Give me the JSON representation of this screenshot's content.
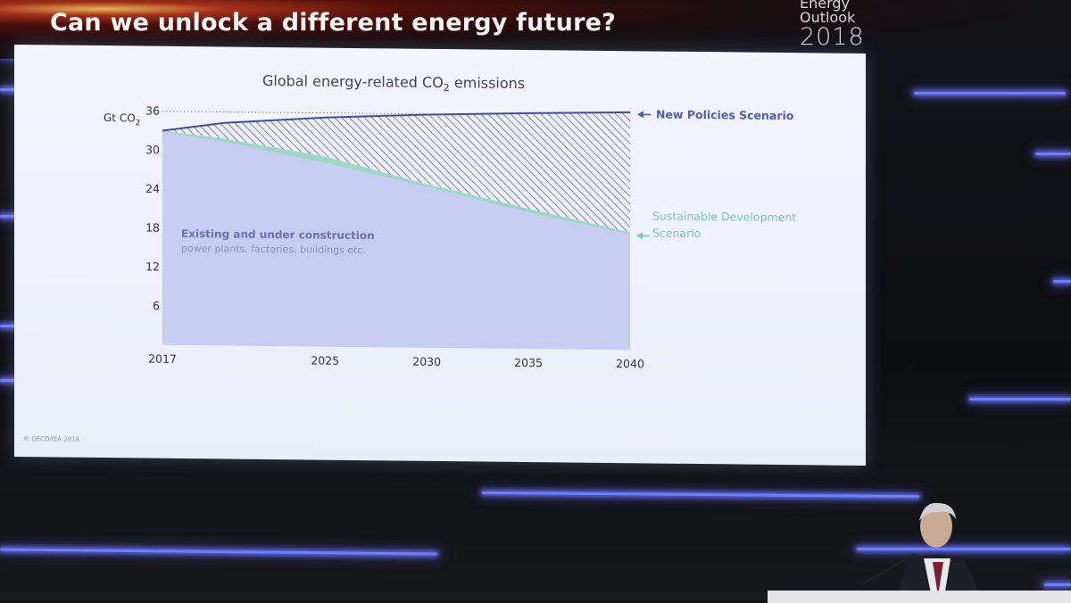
{
  "slide": {
    "title": "Can we unlock a different energy future?",
    "logo": {
      "line1": "Energy",
      "line2": "Outlook",
      "line3": "2018"
    },
    "credit": "© OECD/IEA 2018"
  },
  "chart_data": {
    "type": "area",
    "title": "Global energy-related CO",
    "title_sub": "2",
    "title_end": " emissions",
    "ylabel": "Gt CO",
    "ylabel_sub": "2",
    "ylim": [
      0,
      36
    ],
    "yticks": [
      6,
      12,
      18,
      24,
      30,
      36
    ],
    "xlim": [
      2017,
      2040
    ],
    "xticks": [
      2017,
      2025,
      2030,
      2035,
      2040
    ],
    "grid": "dotted",
    "series": [
      {
        "name": "New Policies Scenario",
        "x": [
          2017,
          2020,
          2025,
          2030,
          2035,
          2040
        ],
        "values": [
          33,
          34.3,
          35.3,
          35.9,
          36.3,
          36.6
        ]
      },
      {
        "name": "Sustainable Development Scenario",
        "x": [
          2017,
          2020,
          2025,
          2030,
          2035,
          2040
        ],
        "values": [
          33,
          31.9,
          29.3,
          25.2,
          21.6,
          18.1
        ]
      },
      {
        "name": "Existing and under construction",
        "x": [
          2017,
          2020,
          2025,
          2030,
          2035,
          2040
        ],
        "values": [
          32.8,
          31.4,
          28.3,
          24.7,
          21.0,
          17.8
        ]
      }
    ],
    "area_label": "Existing and under construction",
    "area_sublabel": "power plants, factories, buildings etc.",
    "label_npp": "New Policies Scenario",
    "label_sds_1": "Sustainable Development",
    "label_sds_2": "Scenario"
  },
  "colors": {
    "npp_line": "#3d4fa3",
    "npp_label": "#4a5db8",
    "sds": "#7cc6b3",
    "area": "#c7ccf3",
    "axis_text": "#333"
  }
}
